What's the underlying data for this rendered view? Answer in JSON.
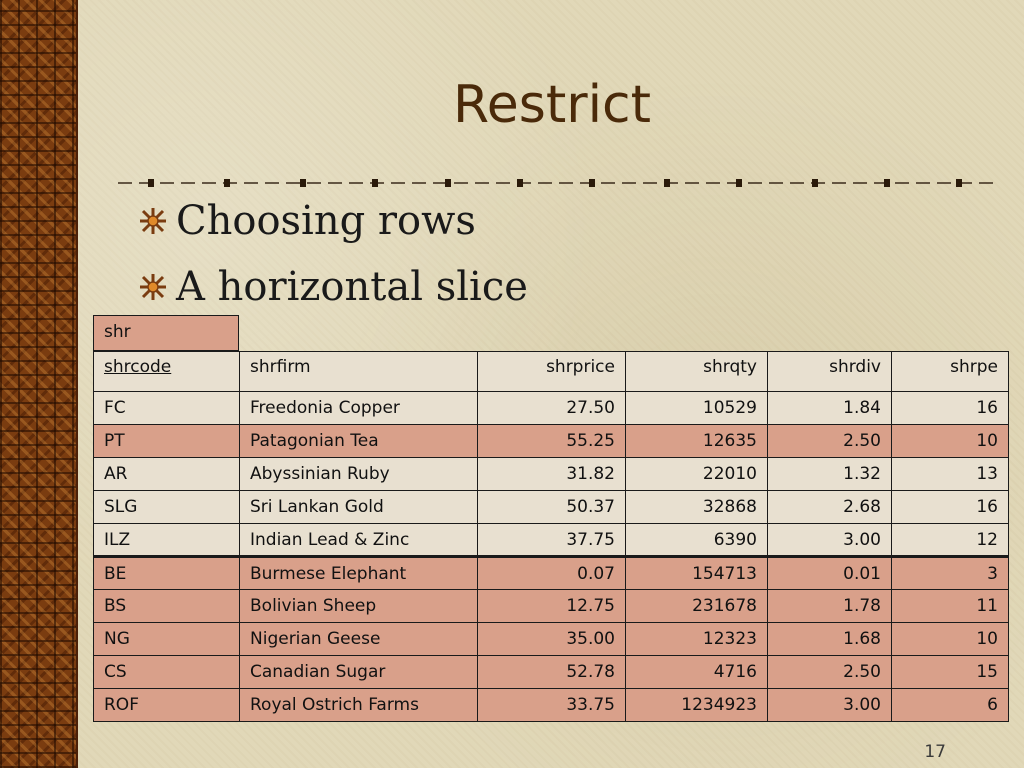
{
  "slide": {
    "title": "Restrict",
    "bullets": [
      "Choosing rows",
      "A horizontal slice"
    ],
    "page_number": "17",
    "bullet_icon": "starburst-icon"
  },
  "table": {
    "name": "shr",
    "headers": [
      "shrcode",
      "shrfirm",
      "shrprice",
      "shrqty",
      "shrdiv",
      "shrpe"
    ],
    "rows": [
      [
        "FC",
        "Freedonia Copper",
        "27.50",
        "10529",
        "1.84",
        "16"
      ],
      [
        "PT",
        "Patagonian Tea",
        "55.25",
        "12635",
        "2.50",
        "10"
      ],
      [
        "AR",
        "Abyssinian Ruby",
        "31.82",
        "22010",
        "1.32",
        "13"
      ],
      [
        "SLG",
        "Sri Lankan Gold",
        "50.37",
        "32868",
        "2.68",
        "16"
      ],
      [
        "ILZ",
        "Indian Lead & Zinc",
        "37.75",
        "6390",
        "3.00",
        "12"
      ],
      [
        "BE",
        "Burmese Elephant",
        "0.07",
        "154713",
        "0.01",
        "3"
      ],
      [
        "BS",
        "Bolivian Sheep",
        "12.75",
        "231678",
        "1.78",
        "11"
      ],
      [
        "NG",
        "Nigerian Geese",
        "35.00",
        "12323",
        "1.68",
        "10"
      ],
      [
        "CS",
        "Canadian Sugar",
        "52.78",
        "4716",
        "2.50",
        "15"
      ],
      [
        "ROF",
        "Royal Ostrich Farms",
        "33.75",
        "1234923",
        "3.00",
        "6"
      ]
    ],
    "row_shading": [
      "odd",
      "even",
      "odd",
      "odd",
      "odd",
      "even",
      "even",
      "even",
      "even",
      "even"
    ]
  },
  "colors": {
    "background": "#e1d8b8",
    "title": "#4a2a0a",
    "row_light": "#e8e0d0",
    "row_highlight": "#d9a08a"
  }
}
